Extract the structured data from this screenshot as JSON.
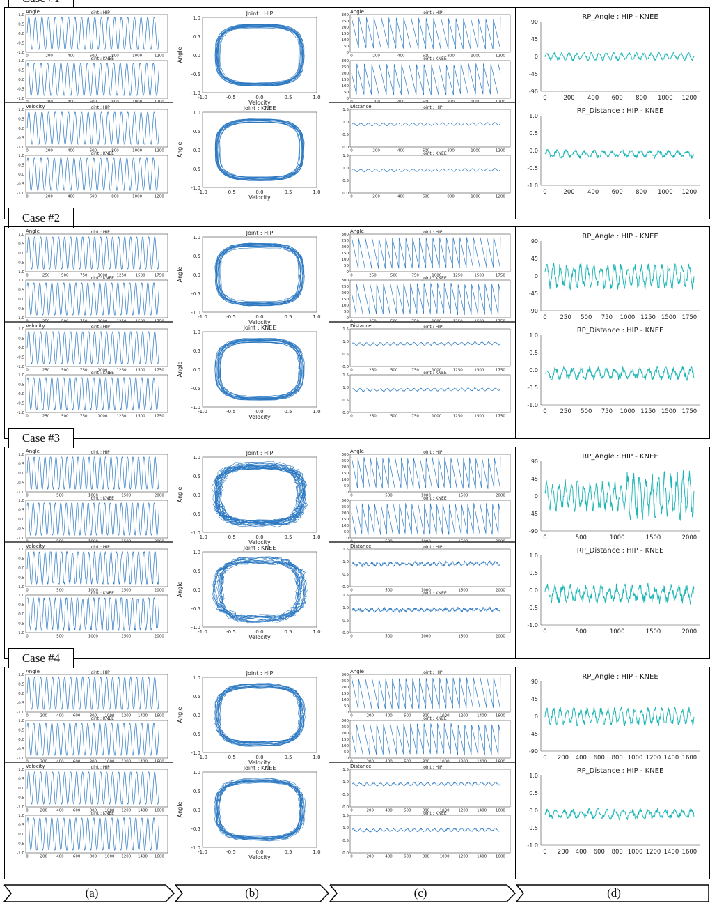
{
  "column_labels": [
    "(a)",
    "(b)",
    "(c)",
    "(d)"
  ],
  "colors": {
    "line": "#2b78c2",
    "rp": "#19b5b5",
    "frame": "#000000"
  },
  "cases": [
    {
      "title": "Case #1",
      "xmax": 1280,
      "cycles": 20,
      "a_ticks": [
        "0",
        "200",
        "400",
        "600",
        "800",
        "1000",
        "1200"
      ],
      "d_ticks": [
        "0",
        "200",
        "400",
        "600",
        "800",
        "1000",
        "1200"
      ],
      "a_titles": {
        "angle": "Angle",
        "velocity": "Velocity",
        "hip": "Joint : HIP",
        "knee": "Joint : KNEE"
      },
      "a_yticks": [
        "1.0",
        "0.5",
        "0.0",
        "-0.5",
        "-1.0"
      ],
      "b_titles": {
        "hip": "Joint : HIP",
        "knee": "Joint : KNEE"
      },
      "b_axis": {
        "xlabel": "Velocity",
        "ylabel": "Angle",
        "xticks": [
          "-1.0",
          "-0.5",
          "0.0",
          "0.5",
          "1.0"
        ],
        "yticks": [
          "1.0",
          "0.5",
          "0.0",
          "-0.5",
          "-1.0"
        ]
      },
      "c_titles": {
        "angle": "Angle",
        "distance": "Distance",
        "hip": "Joint : HIP",
        "knee": "Joint : KNEE"
      },
      "c_angle_yticks": [
        "300",
        "250",
        "200",
        "150",
        "100",
        "50",
        "0"
      ],
      "c_dist_yticks": [
        "1.5",
        "1.0",
        "0.5",
        "0.0"
      ],
      "d_titles": {
        "angle": "RP_Angle : HIP - KNEE",
        "distance": "RP_Distance : HIP - KNEE"
      },
      "d_angle_yticks": [
        "90",
        "45",
        "0",
        "-45",
        "-90"
      ],
      "d_dist_yticks": [
        "1.0",
        "0.5",
        "0.0",
        "-0.5",
        "-1.0"
      ],
      "rp_angle_amp": 8,
      "rp_dist_amp": 0.08,
      "noise": 0.02
    },
    {
      "title": "Case #2",
      "xmax": 1850,
      "cycles": 22,
      "a_ticks": [
        "0",
        "250",
        "500",
        "750",
        "1000",
        "1250",
        "1500",
        "1750"
      ],
      "d_ticks": [
        "0",
        "250",
        "500",
        "750",
        "1000",
        "1250",
        "1500",
        "1750"
      ],
      "a_titles": {
        "angle": "Angle",
        "velocity": "Velocity",
        "hip": "Joint : HIP",
        "knee": "Joint : KNEE"
      },
      "a_yticks": [
        "1.0",
        "0.5",
        "0.0",
        "-0.5",
        "-1.0"
      ],
      "b_titles": {
        "hip": "Joint : HIP",
        "knee": "Joint : KNEE"
      },
      "b_axis": {
        "xlabel": "Velocity",
        "ylabel": "Angle",
        "xticks": [
          "-1.0",
          "-0.5",
          "0.0",
          "0.5",
          "1.0"
        ],
        "yticks": [
          "1.0",
          "0.5",
          "0.0",
          "-0.5",
          "-1.0"
        ]
      },
      "c_titles": {
        "angle": "Angle",
        "distance": "Distance",
        "hip": "Joint : HIP",
        "knee": "Joint : KNEE"
      },
      "c_angle_yticks": [
        "300",
        "250",
        "200",
        "150",
        "100",
        "50",
        "0"
      ],
      "c_dist_yticks": [
        "1.5",
        "1.0",
        "0.5",
        "0.0"
      ],
      "d_titles": {
        "angle": "RP_Angle : HIP - KNEE",
        "distance": "RP_Distance : HIP - KNEE"
      },
      "d_angle_yticks": [
        "90",
        "45",
        "0",
        "-45",
        "-90"
      ],
      "d_dist_yticks": [
        "1.0",
        "0.5",
        "0.0",
        "-0.5",
        "-1.0"
      ],
      "rp_angle_amp": 25,
      "rp_dist_amp": 0.12,
      "noise": 0.03
    },
    {
      "title": "Case #3",
      "xmax": 2200,
      "cycles": 24,
      "a_ticks": [
        "0",
        "500",
        "1000",
        "1500",
        "2000"
      ],
      "d_ticks": [
        "0",
        "500",
        "1000",
        "1500",
        "2000"
      ],
      "a_titles": {
        "angle": "Angle",
        "velocity": "Velocity",
        "hip": "Joint : HIP",
        "knee": "Joint : KNEE"
      },
      "a_yticks": [
        "1.0",
        "0.5",
        "0.0",
        "-0.5",
        "-1.0"
      ],
      "b_titles": {
        "hip": "Joint : HIP",
        "knee": "Joint : KNEE"
      },
      "b_axis": {
        "xlabel": "Velocity",
        "ylabel": "Angle",
        "xticks": [
          "-1.0",
          "-0.5",
          "0.0",
          "0.5",
          "1.0"
        ],
        "yticks": [
          "1.0",
          "0.5",
          "0.0",
          "-0.5",
          "-1.0"
        ]
      },
      "c_titles": {
        "angle": "Angle",
        "distance": "Distance",
        "hip": "Joint : HIP",
        "knee": "Joint : KNEE"
      },
      "c_angle_yticks": [
        "300",
        "250",
        "200",
        "150",
        "100",
        "50",
        "0"
      ],
      "c_dist_yticks": [
        "1.5",
        "1.0",
        "0.5",
        "0.0"
      ],
      "d_titles": {
        "angle": "RP_Angle : HIP - KNEE",
        "distance": "RP_Distance : HIP - KNEE"
      },
      "d_angle_yticks": [
        "90",
        "45",
        "0",
        "-45",
        "-90"
      ],
      "d_dist_yticks": [
        "1.0",
        "0.5",
        "0.0",
        "-0.5",
        "-1.0"
      ],
      "rp_angle_amp": 30,
      "rp_dist_amp": 0.18,
      "noise": 0.12
    },
    {
      "title": "Case #4",
      "xmax": 1650,
      "cycles": 22,
      "a_ticks": [
        "0",
        "200",
        "400",
        "600",
        "800",
        "1000",
        "1200",
        "1400",
        "1600"
      ],
      "d_ticks": [
        "0",
        "200",
        "400",
        "600",
        "800",
        "1000",
        "1200",
        "1400",
        "1600"
      ],
      "a_titles": {
        "angle": "Angle",
        "velocity": "Velocity",
        "hip": "Joint : HIP",
        "knee": "Joint : KNEE"
      },
      "a_yticks": [
        "1.0",
        "0.5",
        "0.0",
        "-0.5",
        "-1.0"
      ],
      "b_titles": {
        "hip": "Joint : HIP",
        "knee": "Joint : KNEE"
      },
      "b_axis": {
        "xlabel": "Velocity",
        "ylabel": "Angle",
        "xticks": [
          "-1.0",
          "-0.5",
          "0.0",
          "0.5",
          "1.0"
        ],
        "yticks": [
          "1.0",
          "0.5",
          "0.0",
          "-0.5",
          "-1.0"
        ]
      },
      "c_titles": {
        "angle": "Angle",
        "distance": "Distance",
        "hip": "Joint : HIP",
        "knee": "Joint : KNEE"
      },
      "c_angle_yticks": [
        "300",
        "250",
        "200",
        "150",
        "100",
        "50",
        "0"
      ],
      "c_dist_yticks": [
        "1.5",
        "1.0",
        "0.5",
        "0.0"
      ],
      "d_titles": {
        "angle": "RP_Angle : HIP - KNEE",
        "distance": "RP_Distance : HIP - KNEE"
      },
      "d_angle_yticks": [
        "90",
        "45",
        "0",
        "-45",
        "-90"
      ],
      "d_dist_yticks": [
        "1.0",
        "0.5",
        "0.0",
        "-0.5",
        "-1.0"
      ],
      "rp_angle_amp": 18,
      "rp_dist_amp": 0.1,
      "noise": 0.05
    }
  ],
  "chart_data": [
    {
      "type": "line",
      "title": "RP_Angle : HIP - KNEE",
      "case": "Case #1",
      "xlim": [
        0,
        1280
      ],
      "ylim": [
        -90,
        90
      ]
    },
    {
      "type": "line",
      "title": "RP_Distance : HIP - KNEE",
      "case": "Case #1",
      "xlim": [
        0,
        1280
      ],
      "ylim": [
        -1.0,
        1.0
      ]
    },
    {
      "type": "line",
      "title": "RP_Angle : HIP - KNEE",
      "case": "Case #2",
      "xlim": [
        0,
        1850
      ],
      "ylim": [
        -90,
        90
      ]
    },
    {
      "type": "line",
      "title": "RP_Distance : HIP - KNEE",
      "case": "Case #2",
      "xlim": [
        0,
        1850
      ],
      "ylim": [
        -1.0,
        1.0
      ]
    },
    {
      "type": "line",
      "title": "RP_Angle : HIP - KNEE",
      "case": "Case #3",
      "xlim": [
        0,
        2200
      ],
      "ylim": [
        -90,
        90
      ]
    },
    {
      "type": "line",
      "title": "RP_Distance : HIP - KNEE",
      "case": "Case #3",
      "xlim": [
        0,
        2200
      ],
      "ylim": [
        -1.0,
        1.0
      ]
    },
    {
      "type": "line",
      "title": "RP_Angle : HIP - KNEE",
      "case": "Case #4",
      "xlim": [
        0,
        1650
      ],
      "ylim": [
        -90,
        90
      ]
    },
    {
      "type": "line",
      "title": "RP_Distance : HIP - KNEE",
      "case": "Case #4",
      "xlim": [
        0,
        1650
      ],
      "ylim": [
        -1.0,
        1.0
      ]
    }
  ]
}
